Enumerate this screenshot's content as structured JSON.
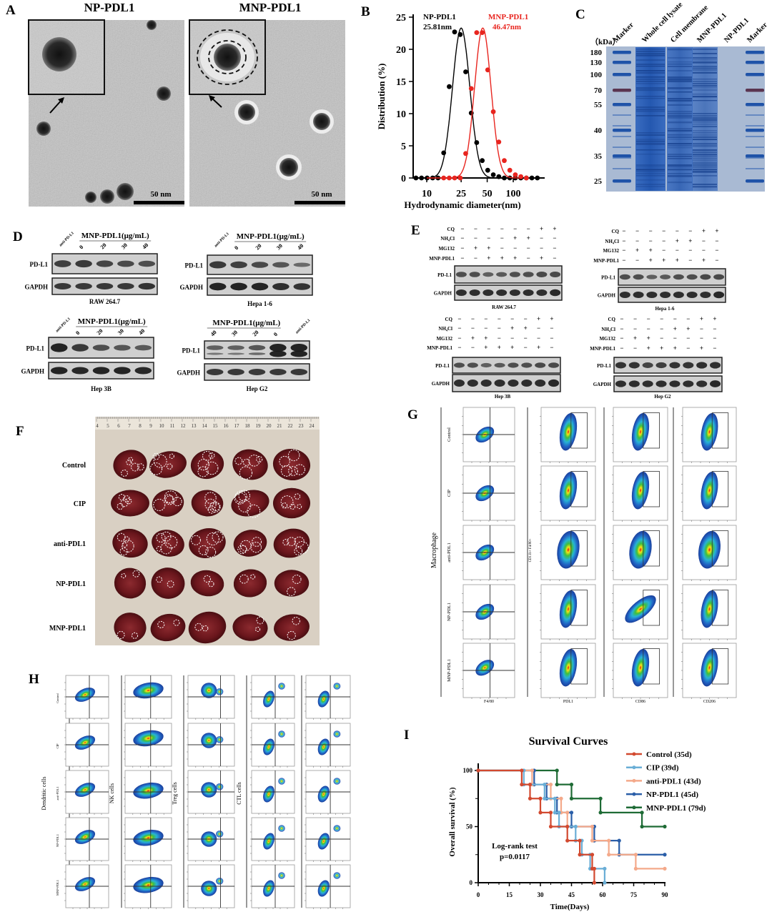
{
  "panel_labels": {
    "a": "A",
    "b": "B",
    "c": "C",
    "d": "D",
    "e": "E",
    "f": "F",
    "g": "G",
    "h": "H",
    "i": "I"
  },
  "panel_a": {
    "titles": [
      "NP-PDL1",
      "MNP-PDL1"
    ],
    "scale_bar": "50 nm"
  },
  "panel_c": {
    "unit": "（kDa）",
    "lanes": [
      "Marker",
      "Whole cell lysate",
      "Cell membrane",
      "MNP-PDL1",
      "NP-PDL1",
      "Marker"
    ],
    "markers": [
      "180",
      "130",
      "100",
      "70",
      "55",
      "40",
      "35",
      "25"
    ]
  },
  "panel_d": {
    "rows": [
      "PD-L1",
      "GAPDH"
    ],
    "blots": [
      {
        "cell_line": "RAW 264.7",
        "header": "MNP-PDL1(μg/mL)",
        "lanes": [
          "anti-PD-L1",
          "0",
          "20",
          "30",
          "40"
        ]
      },
      {
        "cell_line": "Hepa 1-6",
        "header": "MNP-PDL1(μg/mL)",
        "lanes": [
          "anti-PD-L1",
          "0",
          "20",
          "30",
          "40"
        ]
      },
      {
        "cell_line": "Hep 3B",
        "header": "MNP-PDL1(μg/mL)",
        "lanes": [
          "anti-PD-L1",
          "0",
          "20",
          "30",
          "40"
        ]
      },
      {
        "cell_line": "Hep G2",
        "header": "MNP-PDL1(μg/mL)",
        "lanes": [
          "40",
          "30",
          "20",
          "0",
          "anti-PD-L1"
        ]
      }
    ]
  },
  "panel_e": {
    "rows": [
      "PD-L1",
      "GAPDH"
    ],
    "treatments": [
      {
        "name": "CQ",
        "signs": [
          "−",
          "−",
          "−",
          "−",
          "−",
          "−",
          "+",
          "+"
        ]
      },
      {
        "name": "NH₄Cl",
        "signs": [
          "−",
          "−",
          "−",
          "−",
          "+",
          "+",
          "−",
          "−"
        ]
      },
      {
        "name": "MG132",
        "signs": [
          "−",
          "+",
          "+",
          "−",
          "−",
          "−",
          "−",
          "−"
        ]
      },
      {
        "name": "MNP-PDL1",
        "signs": [
          "−",
          "−",
          "+",
          "+",
          "+",
          "−",
          "+",
          "−"
        ]
      }
    ],
    "blots": [
      {
        "cell_line": "RAW 264.7"
      },
      {
        "cell_line": "Hepa 1-6"
      },
      {
        "cell_line": "Hep 3B"
      },
      {
        "cell_line": "Hep G2"
      }
    ]
  },
  "panel_f": {
    "groups": [
      "Control",
      "CIP",
      "anti-PDL1",
      "NP-PDL1",
      "MNP-PDL1"
    ],
    "ruler": [
      "4",
      "5",
      "6",
      "7",
      "8",
      "9",
      "10",
      "11",
      "12",
      "13",
      "14",
      "15",
      "16",
      "17",
      "18",
      "19",
      "20",
      "21",
      "22",
      "23",
      "24"
    ]
  },
  "panel_g": {
    "population": "Macrophage",
    "groups": [
      "Control",
      "CIP",
      "anti-PDL1",
      "NP-PDL1",
      "MNP-PDL1"
    ],
    "x_labels": [
      "F4/80",
      "PDL1",
      "CD86",
      "CD206"
    ],
    "gate_label": "CD11b+ F4/80+"
  },
  "panel_h": {
    "populations": [
      "Dendritic cells",
      "NK cells",
      "Treg cells",
      "CTL cells"
    ],
    "groups": [
      "Control",
      "CIP",
      "anti-PDL1",
      "NP-PDL1",
      "MNP-PDL1"
    ]
  },
  "chart_data": [
    {
      "type": "scatter",
      "title": "",
      "xlabel": "Hydrodynamic diameter(nm)",
      "ylabel": "Distribution (%)",
      "x_scale": "log",
      "xlim": [
        7,
        200
      ],
      "ylim": [
        0,
        25
      ],
      "x_ticks": [
        "10",
        "25",
        "50",
        "100"
      ],
      "y_ticks": [
        "0",
        "5",
        "10",
        "15",
        "20",
        "25"
      ],
      "grid": false,
      "annotations": [
        {
          "text": "NP-PDL1",
          "value": "25.81nm",
          "color": "#000000"
        },
        {
          "text": "MNP-PDL1",
          "value": "46.47nm",
          "color": "#e8251f"
        }
      ],
      "series": [
        {
          "name": "NP-PDL1",
          "color": "#000000",
          "fit": "gaussian",
          "x": [
            7.5,
            8.7,
            10.1,
            11.7,
            13.5,
            15.7,
            18.2,
            21.0,
            24.4,
            28.2,
            32.7,
            37.8,
            43.8,
            50.7,
            58.8,
            68.1,
            78.8,
            91.3,
            105.7,
            122.4,
            141.8,
            164.2,
            190.1
          ],
          "y": [
            0,
            0,
            0,
            0,
            0,
            3.9,
            14.2,
            22.7,
            22.3,
            16.5,
            10.1,
            5.5,
            2.7,
            1.2,
            0.5,
            0.2,
            0,
            0,
            0,
            0,
            0,
            0,
            0
          ]
        },
        {
          "name": "MNP-PDL1",
          "color": "#e8251f",
          "fit": "gaussian",
          "x": [
            15.7,
            18.2,
            21.0,
            24.4,
            28.2,
            32.7,
            37.8,
            43.8,
            50.7,
            58.8,
            68.1,
            78.8,
            91.3,
            105.7,
            122.4,
            141.8
          ],
          "y": [
            0,
            0,
            0,
            0,
            3.8,
            13.9,
            22.6,
            22.6,
            16.8,
            10.3,
            5.6,
            2.7,
            1.2,
            0.5,
            0.2,
            0
          ]
        }
      ]
    },
    {
      "type": "line",
      "title": "Survival Curves",
      "xlabel": "Time(Days)",
      "ylabel": "Overall survival (%)",
      "xlim": [
        0,
        90
      ],
      "ylim": [
        0,
        100
      ],
      "x_ticks": [
        "0",
        "15",
        "30",
        "45",
        "60",
        "75",
        "90"
      ],
      "y_ticks": [
        "0",
        "50",
        "100"
      ],
      "grid": false,
      "legend_position": "top-right",
      "annotation": [
        "Log-rank test",
        "p=0.0117"
      ],
      "series": [
        {
          "name": "Control (35d)",
          "color": "#d2492f",
          "steps": [
            [
              0,
              100
            ],
            [
              21,
              87.5
            ],
            [
              25,
              75
            ],
            [
              30,
              62.5
            ],
            [
              35,
              50
            ],
            [
              43,
              37.5
            ],
            [
              49,
              25
            ],
            [
              55,
              12.5
            ],
            [
              56,
              0
            ]
          ]
        },
        {
          "name": "CIP (39d)",
          "color": "#6aaed6",
          "steps": [
            [
              0,
              100
            ],
            [
              22,
              87.5
            ],
            [
              32,
              75
            ],
            [
              37,
              62.5
            ],
            [
              39,
              50
            ],
            [
              47,
              37.5
            ],
            [
              50,
              25
            ],
            [
              54,
              12.5
            ],
            [
              61,
              0
            ]
          ]
        },
        {
          "name": "anti-PDL1 (43d)",
          "color": "#f4a98a",
          "steps": [
            [
              0,
              100
            ],
            [
              26,
              87.5
            ],
            [
              35,
              75
            ],
            [
              40,
              62.5
            ],
            [
              43,
              50
            ],
            [
              55,
              37.5
            ],
            [
              63,
              25
            ],
            [
              76,
              12.5
            ],
            [
              90,
              12.5
            ]
          ]
        },
        {
          "name": "NP-PDL1 (45d)",
          "color": "#2a5ea8",
          "steps": [
            [
              0,
              100
            ],
            [
              27,
              87.5
            ],
            [
              33,
              75
            ],
            [
              38,
              62.5
            ],
            [
              45,
              50
            ],
            [
              56,
              37.5
            ],
            [
              68,
              25
            ],
            [
              90,
              25
            ]
          ]
        },
        {
          "name": "MNP-PDL1 (79d)",
          "color": "#1e6b35",
          "steps": [
            [
              0,
              100
            ],
            [
              38,
              87.5
            ],
            [
              45,
              75
            ],
            [
              59,
              62.5
            ],
            [
              79,
              50
            ],
            [
              90,
              50
            ]
          ]
        }
      ]
    }
  ]
}
